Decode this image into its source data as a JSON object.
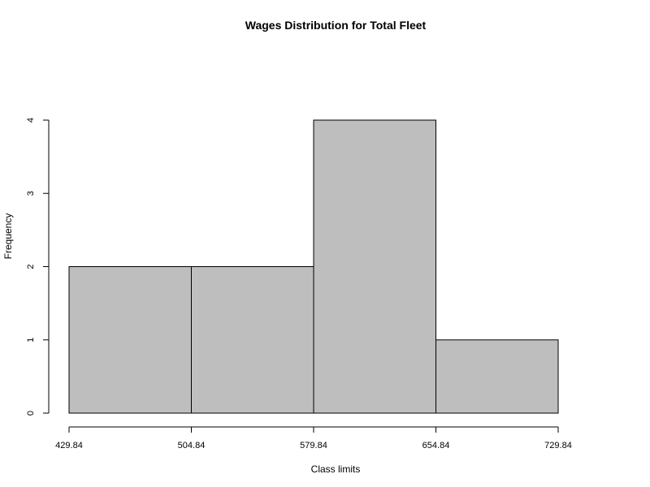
{
  "chart_data": {
    "type": "bar",
    "title": "Wages Distribution for Total Fleet",
    "xlabel": "Class limits",
    "ylabel": "Frequency",
    "x_ticks": [
      "429.84",
      "504.84",
      "579.84",
      "654.84",
      "729.84"
    ],
    "bins": [
      {
        "from": 429.84,
        "to": 504.84,
        "value": 2
      },
      {
        "from": 504.84,
        "to": 579.84,
        "value": 2
      },
      {
        "from": 579.84,
        "to": 654.84,
        "value": 4
      },
      {
        "from": 654.84,
        "to": 729.84,
        "value": 1
      }
    ],
    "values": [
      2,
      2,
      4,
      1
    ],
    "y_ticks": [
      "0",
      "1",
      "2",
      "3",
      "4"
    ],
    "xlim": [
      429.84,
      729.84
    ],
    "ylim": [
      0,
      4
    ],
    "grid": false,
    "legend": "none"
  }
}
